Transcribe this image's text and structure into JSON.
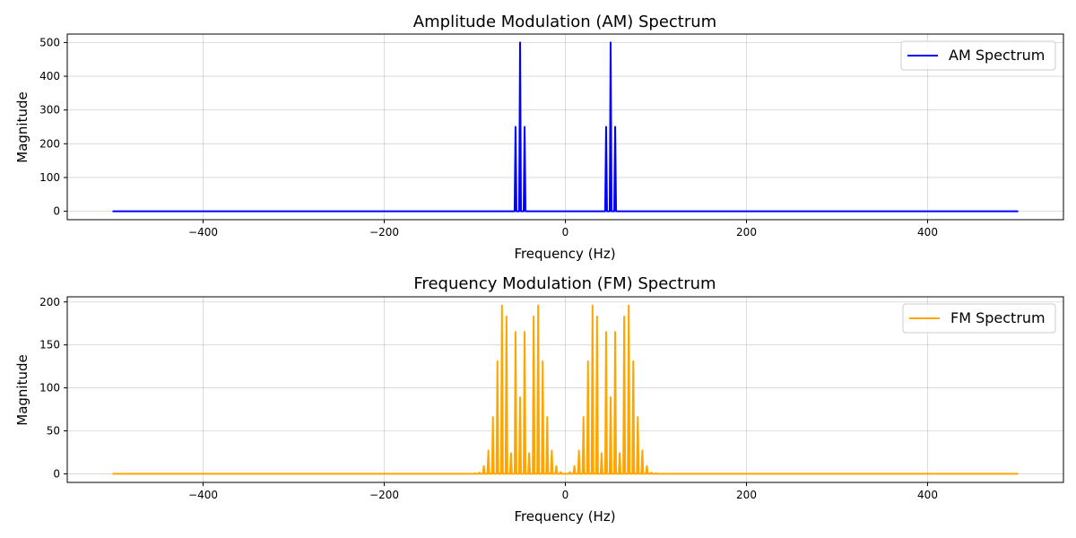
{
  "chart_data": [
    {
      "type": "line",
      "title": "Amplitude Modulation (AM) Spectrum",
      "xlabel": "Frequency (Hz)",
      "ylabel": "Magnitude",
      "xlim": [
        -550,
        550
      ],
      "ylim": [
        -25,
        525
      ],
      "xticks": [
        -400,
        -200,
        0,
        200,
        400
      ],
      "yticks": [
        0,
        100,
        200,
        300,
        400,
        500
      ],
      "grid": true,
      "legend_position": "upper-right",
      "series": [
        {
          "name": "AM Spectrum",
          "color": "#0000ff",
          "x_range": [
            -500,
            500
          ],
          "peaks": [
            {
              "x": -55,
              "y": 250
            },
            {
              "x": -50,
              "y": 500
            },
            {
              "x": -45,
              "y": 250
            },
            {
              "x": 45,
              "y": 250
            },
            {
              "x": 50,
              "y": 500
            },
            {
              "x": 55,
              "y": 250
            }
          ]
        }
      ]
    },
    {
      "type": "line",
      "title": "Frequency Modulation (FM) Spectrum",
      "xlabel": "Frequency (Hz)",
      "ylabel": "Magnitude",
      "xlim": [
        -550,
        550
      ],
      "ylim": [
        -10,
        206
      ],
      "xticks": [
        -400,
        -200,
        0,
        200,
        400
      ],
      "yticks": [
        0,
        50,
        100,
        150,
        200
      ],
      "grid": true,
      "legend_position": "upper-right",
      "series": [
        {
          "name": "FM Spectrum",
          "color": "#ffa500",
          "x_range": [
            -500,
            500
          ],
          "peaks": [
            {
              "x": -100,
              "y": 0.5
            },
            {
              "x": -95,
              "y": 1.5
            },
            {
              "x": -90,
              "y": 9
            },
            {
              "x": -85,
              "y": 27
            },
            {
              "x": -80,
              "y": 66
            },
            {
              "x": -75,
              "y": 131
            },
            {
              "x": -70,
              "y": 196
            },
            {
              "x": -65,
              "y": 183
            },
            {
              "x": -60,
              "y": 24
            },
            {
              "x": -55,
              "y": 165
            },
            {
              "x": -50,
              "y": 89
            },
            {
              "x": -45,
              "y": 165
            },
            {
              "x": -40,
              "y": 24
            },
            {
              "x": -35,
              "y": 183
            },
            {
              "x": -30,
              "y": 196
            },
            {
              "x": -25,
              "y": 131
            },
            {
              "x": -20,
              "y": 66
            },
            {
              "x": -15,
              "y": 27
            },
            {
              "x": -10,
              "y": 9
            },
            {
              "x": -5,
              "y": 2
            },
            {
              "x": 5,
              "y": 2
            },
            {
              "x": 10,
              "y": 9
            },
            {
              "x": 15,
              "y": 27
            },
            {
              "x": 20,
              "y": 66
            },
            {
              "x": 25,
              "y": 131
            },
            {
              "x": 30,
              "y": 196
            },
            {
              "x": 35,
              "y": 183
            },
            {
              "x": 40,
              "y": 24
            },
            {
              "x": 45,
              "y": 165
            },
            {
              "x": 50,
              "y": 89
            },
            {
              "x": 55,
              "y": 165
            },
            {
              "x": 60,
              "y": 24
            },
            {
              "x": 65,
              "y": 183
            },
            {
              "x": 70,
              "y": 196
            },
            {
              "x": 75,
              "y": 131
            },
            {
              "x": 80,
              "y": 66
            },
            {
              "x": 85,
              "y": 27
            },
            {
              "x": 90,
              "y": 9
            },
            {
              "x": 95,
              "y": 1.5
            },
            {
              "x": 100,
              "y": 0.5
            }
          ]
        }
      ]
    }
  ]
}
